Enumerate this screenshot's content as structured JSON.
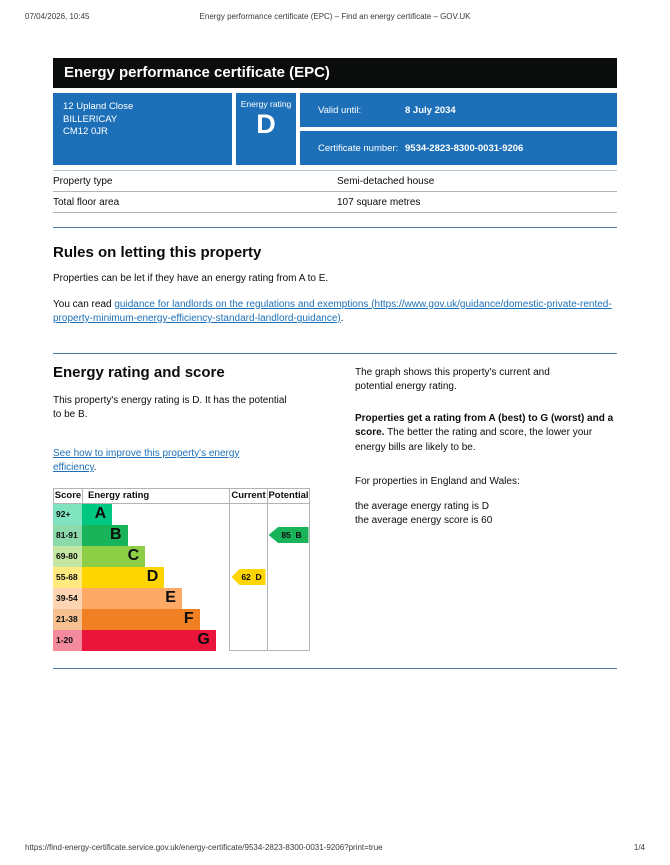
{
  "print_header": {
    "datetime": "07/04/2026, 10:45",
    "title": "Energy performance certificate (EPC) – Find an energy certificate – GOV.UK"
  },
  "banner": {
    "title": "Energy performance certificate (EPC)"
  },
  "summary_box": {
    "address_line1": "12 Upland Close",
    "address_line2": "BILLERICAY",
    "address_line3": "CM12 0JR",
    "energy_rating_label": "Energy rating",
    "energy_rating": "D",
    "valid_until_label": "Valid until:",
    "valid_until": "8 July 2034",
    "certificate_number_label": "Certificate number:",
    "certificate_number": "9534-2823-8300-0031-9206"
  },
  "property_table": {
    "rows": [
      {
        "label": "Property type",
        "value": "Semi-detached house"
      },
      {
        "label": "Total floor area",
        "value": "107 square metres"
      }
    ]
  },
  "letting_section": {
    "heading": "Rules on letting this property",
    "para1": "Properties can be let if they have an energy rating from A to E.",
    "para2_prefix": "You can read ",
    "para2_link": "guidance for landlords on the regulations and exemptions (https://www.gov.uk/guidance/domestic-private-rented-property-minimum-energy-efficiency-standard-landlord-guidance)",
    "para2_suffix": "."
  },
  "rating_section": {
    "heading": "Energy rating and score",
    "lead": "This property's energy rating is D. It has the potential to be B.",
    "improve_link": "See how to improve this property's energy efficiency",
    "improve_suffix": ".",
    "right_para1": "The graph shows this property's current and potential energy rating.",
    "right_para2_bold": "Properties get a rating from A (best) to G (worst) and a score.",
    "right_para2_rest": " The better the rating and score, the lower your energy bills are likely to be.",
    "right_para3": "For properties in England and Wales:",
    "right_para4_line1": "the average energy rating is D",
    "right_para4_line2": "the average energy score is 60"
  },
  "colors": {
    "brand_blue": "#1d70b8",
    "link_blue": "#1d70b8",
    "banner_black": "#0b0c0c"
  },
  "chart_data": {
    "type": "bar",
    "title": "Energy rating and score",
    "headers": [
      "Score",
      "Energy rating",
      "Current",
      "Potential"
    ],
    "bands": [
      {
        "score": "92+",
        "letter": "A",
        "color": "#00c781",
        "width_pct": 20.5
      },
      {
        "score": "81-91",
        "letter": "B",
        "color": "#19b459",
        "width_pct": 31
      },
      {
        "score": "69-80",
        "letter": "C",
        "color": "#8dce46",
        "width_pct": 43
      },
      {
        "score": "55-68",
        "letter": "D",
        "color": "#ffd500",
        "width_pct": 56
      },
      {
        "score": "39-54",
        "letter": "E",
        "color": "#fcaa65",
        "width_pct": 68
      },
      {
        "score": "21-38",
        "letter": "F",
        "color": "#ef8023",
        "width_pct": 80
      },
      {
        "score": "1-20",
        "letter": "G",
        "color": "#e9153b",
        "width_pct": 91
      }
    ],
    "current": {
      "score": 62,
      "band": "D",
      "color": "#ffd500"
    },
    "potential": {
      "score": 85,
      "band": "B",
      "color": "#19b459"
    }
  },
  "print_footer": {
    "url": "https://find-energy-certificate.service.gov.uk/energy-certificate/9534-2823-8300-0031-9206?print=true",
    "page": "1/4"
  }
}
